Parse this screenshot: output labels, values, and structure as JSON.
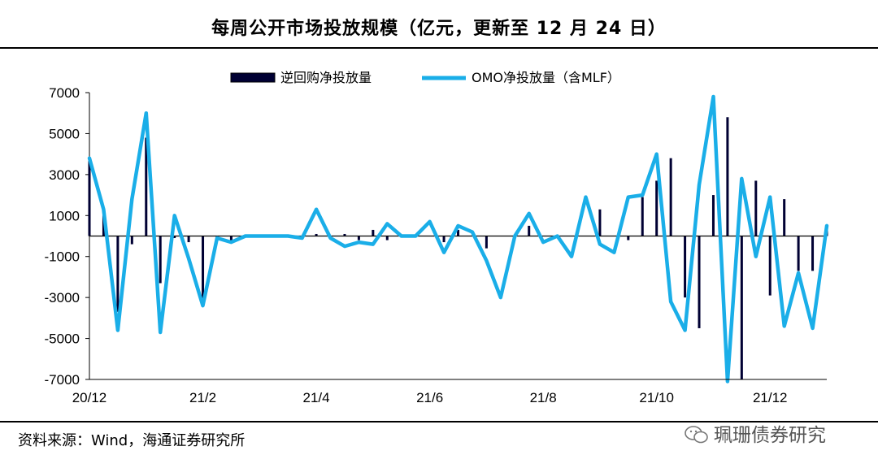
{
  "title": "每周公开市场投放规模（亿元，更新至 12 月 24 日）",
  "source": "资料来源：Wind，海通证券研究所",
  "watermark": "珮珊债券研究",
  "chart_data": {
    "type": "bar+line",
    "title": "每周公开市场投放规模（亿元，更新至 12 月 24 日）",
    "ylim": [
      -7000,
      7000
    ],
    "y_ticks": [
      7000,
      5000,
      3000,
      1000,
      -1000,
      -3000,
      -5000,
      -7000
    ],
    "x_tick_labels": [
      "20/12",
      "21/2",
      "21/4",
      "21/6",
      "21/8",
      "21/10",
      "21/12"
    ],
    "x_tick_week_index": [
      0,
      8,
      16,
      24,
      32,
      40,
      48
    ],
    "legend_position": "top",
    "grid": false,
    "series": [
      {
        "name": "逆回购净投放量",
        "type": "bar",
        "color": "#000033",
        "values": [
          3700,
          1000,
          -3700,
          -400,
          4800,
          -2300,
          -100,
          -300,
          -3200,
          -100,
          -200,
          0,
          0,
          0,
          0,
          0,
          100,
          0,
          100,
          -200,
          300,
          -200,
          0,
          0,
          0,
          -300,
          300,
          0,
          -600,
          0,
          0,
          500,
          0,
          0,
          0,
          0,
          1300,
          0,
          -200,
          1900,
          2700,
          3800,
          -3000,
          -4500,
          2000,
          5800,
          -7000,
          2700,
          -2900,
          1800,
          -1700,
          -1700,
          400
        ]
      },
      {
        "name": "OMO净投放量（含MLF）",
        "type": "line",
        "color": "#1aaee8",
        "values": [
          3800,
          1300,
          -4600,
          1800,
          6000,
          -4700,
          1000,
          -1100,
          -3400,
          -100,
          -300,
          0,
          0,
          0,
          0,
          -100,
          1300,
          -100,
          -500,
          -300,
          -400,
          600,
          0,
          0,
          700,
          -800,
          500,
          200,
          -1200,
          -3000,
          0,
          1100,
          -300,
          0,
          -1000,
          1900,
          -400,
          -800,
          1900,
          2000,
          4000,
          -3200,
          -4600,
          2500,
          6800,
          -7100,
          2800,
          -1000,
          1900,
          -4400,
          -1800,
          -4500,
          500
        ]
      }
    ]
  }
}
